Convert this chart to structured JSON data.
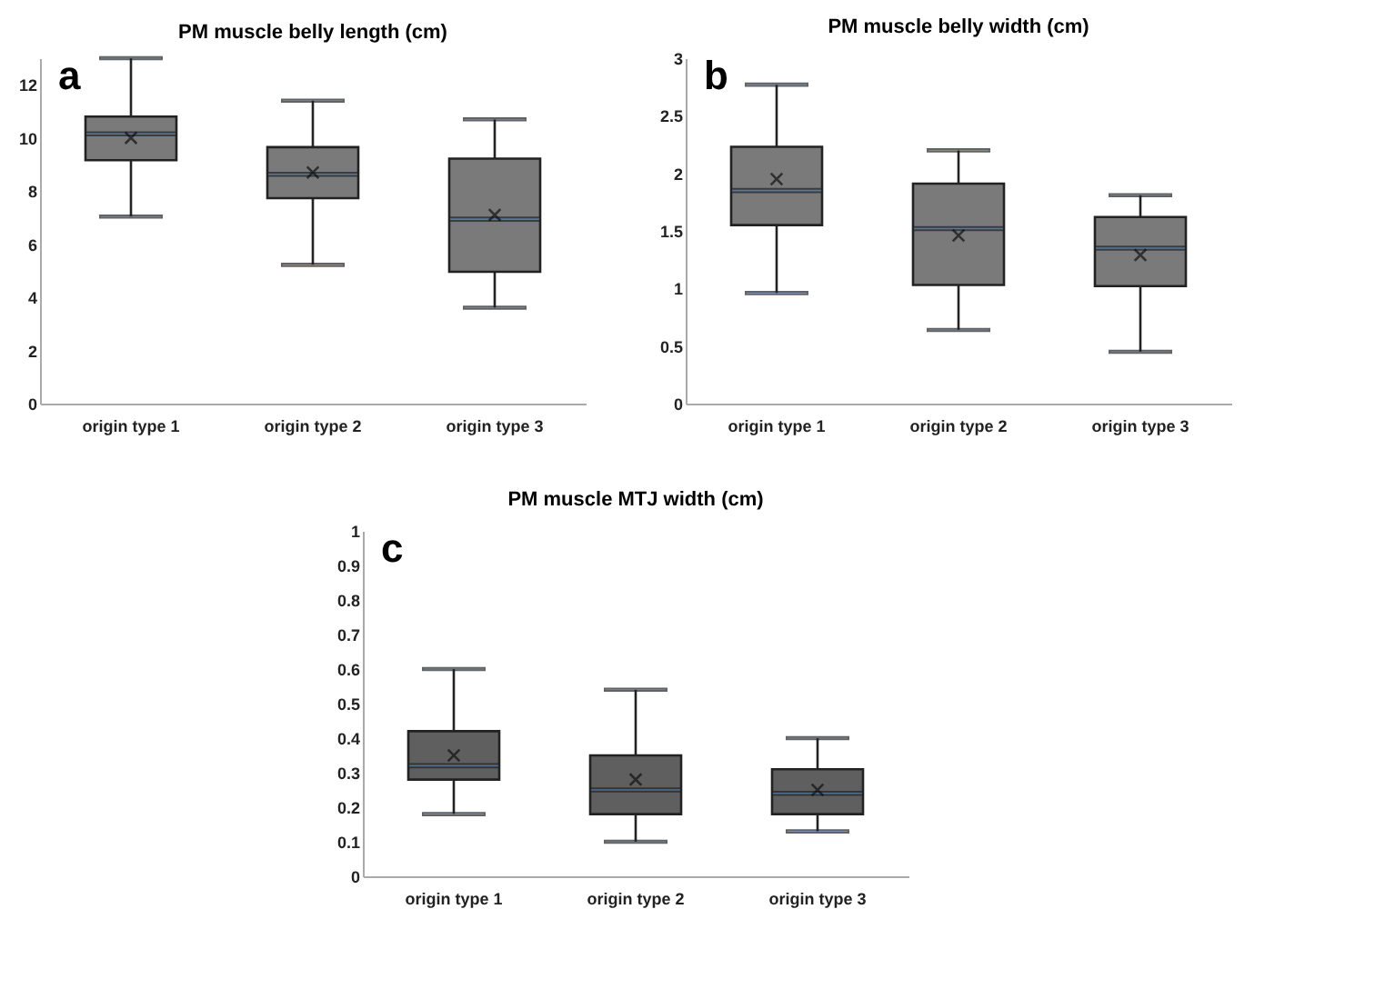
{
  "chart_data": [
    {
      "type": "box",
      "title": "PM muscle belly length (cm)",
      "annotations": [
        "a"
      ],
      "categories": [
        "origin type 1",
        "origin type 2",
        "origin type 3"
      ],
      "ylim": [
        0,
        13
      ],
      "yticks": [
        0,
        2,
        4,
        6,
        8,
        10,
        12
      ],
      "series": [
        {
          "color": "#7a7a7a",
          "boxes": [
            {
              "low": 7.04,
              "q1": 9.16,
              "median": 10.15,
              "q3": 10.8,
              "high": 13,
              "mean": 10.0
            },
            {
              "low": 5.22,
              "q1": 7.73,
              "median": 8.63,
              "q3": 9.65,
              "high": 11.4,
              "mean": 8.7
            },
            {
              "low": 3.61,
              "q1": 4.96,
              "median": 6.94,
              "q3": 9.22,
              "high": 10.7,
              "mean": 7.1
            }
          ]
        }
      ]
    },
    {
      "type": "box",
      "title": "PM muscle belly width (cm)",
      "annotations": [
        "b"
      ],
      "categories": [
        "origin type 1",
        "origin type 2",
        "origin type 3"
      ],
      "ylim": [
        0,
        3
      ],
      "yticks": [
        0,
        0.5,
        1,
        1.5,
        2,
        2.5,
        3
      ],
      "series": [
        {
          "color": "#7a7a7a",
          "boxes": [
            {
              "low": 0.96,
              "q1": 1.55,
              "median": 1.85,
              "q3": 2.23,
              "high": 2.77,
              "mean": 1.95
            },
            {
              "low": 0.64,
              "q1": 1.03,
              "median": 1.52,
              "q3": 1.91,
              "high": 2.2,
              "mean": 1.46
            },
            {
              "low": 0.45,
              "q1": 1.02,
              "median": 1.35,
              "q3": 1.62,
              "high": 1.81,
              "mean": 1.29
            }
          ]
        }
      ]
    },
    {
      "type": "box",
      "title": "PM muscle MTJ width (cm)",
      "annotations": [
        "c"
      ],
      "categories": [
        "origin type 1",
        "origin type 2",
        "origin type 3"
      ],
      "ylim": [
        0,
        1
      ],
      "yticks": [
        0,
        0.1,
        0.2,
        0.3,
        0.4,
        0.5,
        0.6,
        0.7,
        0.8,
        0.9,
        1
      ],
      "series": [
        {
          "color": "#5f5f5f",
          "boxes": [
            {
              "low": 0.18,
              "q1": 0.28,
              "median": 0.32,
              "q3": 0.42,
              "high": 0.6,
              "mean": 0.35
            },
            {
              "low": 0.1,
              "q1": 0.18,
              "median": 0.25,
              "q3": 0.35,
              "high": 0.54,
              "mean": 0.28
            },
            {
              "low": 0.13,
              "q1": 0.18,
              "median": 0.24,
              "q3": 0.31,
              "high": 0.4,
              "mean": 0.25
            }
          ]
        }
      ]
    }
  ]
}
